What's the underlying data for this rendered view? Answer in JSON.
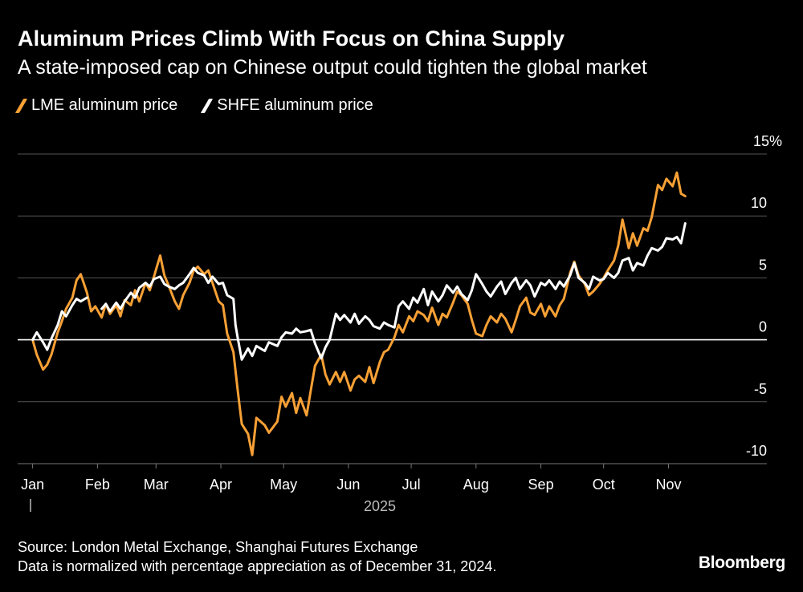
{
  "title": "Aluminum Prices Climb With Focus on China Supply",
  "subtitle": "A state-imposed cap on Chinese output could tighten the global market",
  "legend": [
    {
      "label": "LME aluminum price",
      "color": "#f7a035"
    },
    {
      "label": "SHFE aluminum price",
      "color": "#ffffff"
    }
  ],
  "footer": {
    "source": "Source: London Metal Exchange, Shanghai Futures Exchange",
    "note": "Data is normalized with percentage appreciation as of December 31, 2024."
  },
  "brand": "Bloomberg",
  "chart_data": {
    "type": "line",
    "title": "Aluminum Prices Climb With Focus on China Supply",
    "subtitle": "A state-imposed cap on Chinese output could tighten the global market",
    "xlabel": "2025",
    "ylabel": "",
    "x_ticks": [
      "Jan",
      "Feb",
      "Mar",
      "Apr",
      "May",
      "Jun",
      "Jul",
      "Aug",
      "Sep",
      "Oct",
      "Nov"
    ],
    "year_label": "2025",
    "y_ticks": [
      -10,
      -5,
      0,
      5,
      10
    ],
    "y_tick_labels": [
      "-10",
      "-5",
      "0",
      "5",
      "10"
    ],
    "y_top_label": "15%",
    "ylim": [
      -10,
      15
    ],
    "xlim": [
      "2024-12-31",
      "2025-11-30"
    ],
    "grid": true,
    "legend_position": "top-left",
    "series": [
      {
        "name": "LME aluminum price",
        "color": "#f7a035",
        "points": [
          [
            "2025-01-01",
            0.0
          ],
          [
            "2025-01-03",
            -1.2
          ],
          [
            "2025-01-06",
            -2.4
          ],
          [
            "2025-01-08",
            -2.0
          ],
          [
            "2025-01-10",
            -1.2
          ],
          [
            "2025-01-13",
            0.6
          ],
          [
            "2025-01-15",
            1.5
          ],
          [
            "2025-01-17",
            2.5
          ],
          [
            "2025-01-20",
            3.4
          ],
          [
            "2025-01-22",
            4.8
          ],
          [
            "2025-01-24",
            5.3
          ],
          [
            "2025-01-27",
            3.8
          ],
          [
            "2025-01-29",
            2.3
          ],
          [
            "2025-01-31",
            2.7
          ],
          [
            "2025-02-03",
            1.8
          ],
          [
            "2025-02-05",
            2.9
          ],
          [
            "2025-02-07",
            2.1
          ],
          [
            "2025-02-10",
            2.8
          ],
          [
            "2025-02-12",
            1.9
          ],
          [
            "2025-02-14",
            3.2
          ],
          [
            "2025-02-17",
            2.8
          ],
          [
            "2025-02-19",
            4.0
          ],
          [
            "2025-02-21",
            3.1
          ],
          [
            "2025-02-24",
            4.6
          ],
          [
            "2025-02-26",
            4.0
          ],
          [
            "2025-02-28",
            5.1
          ],
          [
            "2025-03-03",
            6.8
          ],
          [
            "2025-03-05",
            5.2
          ],
          [
            "2025-03-07",
            4.4
          ],
          [
            "2025-03-10",
            3.1
          ],
          [
            "2025-03-12",
            2.5
          ],
          [
            "2025-03-14",
            3.6
          ],
          [
            "2025-03-17",
            4.6
          ],
          [
            "2025-03-19",
            5.6
          ],
          [
            "2025-03-21",
            5.9
          ],
          [
            "2025-03-24",
            5.3
          ],
          [
            "2025-03-26",
            5.6
          ],
          [
            "2025-03-28",
            4.6
          ],
          [
            "2025-03-31",
            3.1
          ],
          [
            "2025-04-02",
            2.8
          ],
          [
            "2025-04-04",
            0.5
          ],
          [
            "2025-04-07",
            -1.0
          ],
          [
            "2025-04-09",
            -4.0
          ],
          [
            "2025-04-11",
            -6.8
          ],
          [
            "2025-04-14",
            -7.6
          ],
          [
            "2025-04-16",
            -9.3
          ],
          [
            "2025-04-18",
            -6.3
          ],
          [
            "2025-04-22",
            -6.9
          ],
          [
            "2025-04-24",
            -7.5
          ],
          [
            "2025-04-28",
            -6.6
          ],
          [
            "2025-04-30",
            -4.6
          ],
          [
            "2025-05-02",
            -5.4
          ],
          [
            "2025-05-05",
            -4.3
          ],
          [
            "2025-05-07",
            -5.9
          ],
          [
            "2025-05-09",
            -4.7
          ],
          [
            "2025-05-12",
            -6.1
          ],
          [
            "2025-05-14",
            -4.1
          ],
          [
            "2025-05-16",
            -2.1
          ],
          [
            "2025-05-19",
            -1.2
          ],
          [
            "2025-05-21",
            -2.8
          ],
          [
            "2025-05-23",
            -3.6
          ],
          [
            "2025-05-26",
            -2.6
          ],
          [
            "2025-05-28",
            -3.4
          ],
          [
            "2025-05-30",
            -2.6
          ],
          [
            "2025-06-02",
            -4.1
          ],
          [
            "2025-06-04",
            -3.2
          ],
          [
            "2025-06-06",
            -2.9
          ],
          [
            "2025-06-09",
            -3.4
          ],
          [
            "2025-06-11",
            -2.2
          ],
          [
            "2025-06-13",
            -3.5
          ],
          [
            "2025-06-16",
            -1.8
          ],
          [
            "2025-06-18",
            -1.0
          ],
          [
            "2025-06-20",
            -0.8
          ],
          [
            "2025-06-23",
            0.2
          ],
          [
            "2025-06-25",
            1.2
          ],
          [
            "2025-06-27",
            0.6
          ],
          [
            "2025-06-30",
            1.9
          ],
          [
            "2025-07-02",
            1.5
          ],
          [
            "2025-07-04",
            2.3
          ],
          [
            "2025-07-07",
            2.0
          ],
          [
            "2025-07-09",
            1.5
          ],
          [
            "2025-07-11",
            2.6
          ],
          [
            "2025-07-14",
            1.2
          ],
          [
            "2025-07-16",
            2.1
          ],
          [
            "2025-07-18",
            1.8
          ],
          [
            "2025-07-21",
            3.0
          ],
          [
            "2025-07-23",
            3.9
          ],
          [
            "2025-07-25",
            3.6
          ],
          [
            "2025-07-28",
            2.9
          ],
          [
            "2025-07-30",
            1.6
          ],
          [
            "2025-08-01",
            0.5
          ],
          [
            "2025-08-04",
            0.3
          ],
          [
            "2025-08-06",
            1.2
          ],
          [
            "2025-08-08",
            1.9
          ],
          [
            "2025-08-11",
            1.4
          ],
          [
            "2025-08-13",
            2.1
          ],
          [
            "2025-08-15",
            1.7
          ],
          [
            "2025-08-18",
            0.6
          ],
          [
            "2025-08-20",
            1.6
          ],
          [
            "2025-08-22",
            2.7
          ],
          [
            "2025-08-25",
            3.4
          ],
          [
            "2025-08-27",
            2.2
          ],
          [
            "2025-08-29",
            2.0
          ],
          [
            "2025-09-01",
            2.9
          ],
          [
            "2025-09-03",
            1.9
          ],
          [
            "2025-09-05",
            2.7
          ],
          [
            "2025-09-08",
            1.9
          ],
          [
            "2025-09-10",
            2.8
          ],
          [
            "2025-09-12",
            3.3
          ],
          [
            "2025-09-15",
            5.4
          ],
          [
            "2025-09-17",
            6.3
          ],
          [
            "2025-09-19",
            5.2
          ],
          [
            "2025-09-22",
            4.5
          ],
          [
            "2025-09-24",
            3.6
          ],
          [
            "2025-09-26",
            3.9
          ],
          [
            "2025-09-29",
            4.5
          ],
          [
            "2025-10-01",
            5.0
          ],
          [
            "2025-10-03",
            5.6
          ],
          [
            "2025-10-06",
            6.4
          ],
          [
            "2025-10-08",
            7.6
          ],
          [
            "2025-10-10",
            9.7
          ],
          [
            "2025-10-13",
            7.4
          ],
          [
            "2025-10-15",
            8.6
          ],
          [
            "2025-10-17",
            7.6
          ],
          [
            "2025-10-20",
            9.0
          ],
          [
            "2025-10-22",
            8.8
          ],
          [
            "2025-10-24",
            9.9
          ],
          [
            "2025-10-27",
            12.5
          ],
          [
            "2025-10-29",
            12.1
          ],
          [
            "2025-10-31",
            13.0
          ],
          [
            "2025-11-03",
            12.4
          ],
          [
            "2025-11-05",
            13.5
          ],
          [
            "2025-11-07",
            11.8
          ],
          [
            "2025-11-09",
            11.6
          ]
        ]
      },
      {
        "name": "SHFE aluminum price",
        "color": "#ffffff",
        "points": [
          [
            "2025-01-01",
            0.0
          ],
          [
            "2025-01-03",
            0.6
          ],
          [
            "2025-01-06",
            -0.2
          ],
          [
            "2025-01-08",
            -0.8
          ],
          [
            "2025-01-10",
            0.1
          ],
          [
            "2025-01-13",
            1.2
          ],
          [
            "2025-01-15",
            2.3
          ],
          [
            "2025-01-17",
            1.9
          ],
          [
            "2025-01-20",
            2.8
          ],
          [
            "2025-01-22",
            3.3
          ],
          [
            "2025-01-24",
            3.1
          ],
          [
            "2025-01-27",
            3.4
          ],
          [
            "2025-02-03",
            2.5
          ],
          [
            "2025-02-05",
            2.9
          ],
          [
            "2025-02-07",
            2.3
          ],
          [
            "2025-02-10",
            3.0
          ],
          [
            "2025-02-12",
            2.5
          ],
          [
            "2025-02-14",
            3.1
          ],
          [
            "2025-02-17",
            3.8
          ],
          [
            "2025-02-19",
            3.4
          ],
          [
            "2025-02-21",
            4.2
          ],
          [
            "2025-02-24",
            4.6
          ],
          [
            "2025-02-26",
            4.3
          ],
          [
            "2025-02-28",
            4.9
          ],
          [
            "2025-03-03",
            5.1
          ],
          [
            "2025-03-05",
            4.5
          ],
          [
            "2025-03-07",
            4.3
          ],
          [
            "2025-03-10",
            4.1
          ],
          [
            "2025-03-12",
            4.4
          ],
          [
            "2025-03-14",
            4.6
          ],
          [
            "2025-03-17",
            5.3
          ],
          [
            "2025-03-19",
            5.8
          ],
          [
            "2025-03-21",
            5.4
          ],
          [
            "2025-03-24",
            5.2
          ],
          [
            "2025-03-26",
            4.6
          ],
          [
            "2025-03-28",
            5.1
          ],
          [
            "2025-03-31",
            4.5
          ],
          [
            "2025-04-02",
            4.6
          ],
          [
            "2025-04-04",
            3.6
          ],
          [
            "2025-04-07",
            3.3
          ],
          [
            "2025-04-08",
            1.2
          ],
          [
            "2025-04-09",
            0.2
          ],
          [
            "2025-04-11",
            -1.6
          ],
          [
            "2025-04-14",
            -0.7
          ],
          [
            "2025-04-16",
            -1.3
          ],
          [
            "2025-04-18",
            -0.5
          ],
          [
            "2025-04-22",
            -0.9
          ],
          [
            "2025-04-24",
            -0.2
          ],
          [
            "2025-04-28",
            -0.5
          ],
          [
            "2025-04-30",
            0.2
          ],
          [
            "2025-05-02",
            0.6
          ],
          [
            "2025-05-05",
            0.5
          ],
          [
            "2025-05-07",
            0.9
          ],
          [
            "2025-05-09",
            0.6
          ],
          [
            "2025-05-12",
            0.7
          ],
          [
            "2025-05-14",
            0.8
          ],
          [
            "2025-05-16",
            -0.3
          ],
          [
            "2025-05-19",
            -1.5
          ],
          [
            "2025-05-21",
            -0.6
          ],
          [
            "2025-05-23",
            0.0
          ],
          [
            "2025-05-26",
            2.1
          ],
          [
            "2025-05-28",
            1.6
          ],
          [
            "2025-05-30",
            2.0
          ],
          [
            "2025-06-02",
            1.4
          ],
          [
            "2025-06-04",
            2.1
          ],
          [
            "2025-06-06",
            1.3
          ],
          [
            "2025-06-09",
            1.9
          ],
          [
            "2025-06-11",
            1.6
          ],
          [
            "2025-06-13",
            1.1
          ],
          [
            "2025-06-16",
            0.9
          ],
          [
            "2025-06-18",
            1.4
          ],
          [
            "2025-06-20",
            1.2
          ],
          [
            "2025-06-23",
            1.0
          ],
          [
            "2025-06-25",
            2.7
          ],
          [
            "2025-06-27",
            3.1
          ],
          [
            "2025-06-30",
            2.5
          ],
          [
            "2025-07-02",
            3.4
          ],
          [
            "2025-07-04",
            3.0
          ],
          [
            "2025-07-07",
            4.1
          ],
          [
            "2025-07-09",
            2.8
          ],
          [
            "2025-07-11",
            3.9
          ],
          [
            "2025-07-14",
            3.1
          ],
          [
            "2025-07-16",
            3.6
          ],
          [
            "2025-07-18",
            4.4
          ],
          [
            "2025-07-21",
            3.8
          ],
          [
            "2025-07-23",
            4.3
          ],
          [
            "2025-07-25",
            3.7
          ],
          [
            "2025-07-28",
            3.2
          ],
          [
            "2025-07-30",
            4.0
          ],
          [
            "2025-08-01",
            5.3
          ],
          [
            "2025-08-04",
            4.5
          ],
          [
            "2025-08-06",
            3.9
          ],
          [
            "2025-08-08",
            3.5
          ],
          [
            "2025-08-11",
            4.3
          ],
          [
            "2025-08-13",
            4.7
          ],
          [
            "2025-08-15",
            3.7
          ],
          [
            "2025-08-18",
            4.6
          ],
          [
            "2025-08-20",
            5.0
          ],
          [
            "2025-08-22",
            4.1
          ],
          [
            "2025-08-25",
            4.8
          ],
          [
            "2025-08-27",
            4.4
          ],
          [
            "2025-08-29",
            3.5
          ],
          [
            "2025-09-01",
            4.6
          ],
          [
            "2025-09-03",
            4.4
          ],
          [
            "2025-09-05",
            4.8
          ],
          [
            "2025-09-08",
            4.1
          ],
          [
            "2025-09-10",
            4.7
          ],
          [
            "2025-09-12",
            4.3
          ],
          [
            "2025-09-15",
            5.2
          ],
          [
            "2025-09-17",
            6.2
          ],
          [
            "2025-09-19",
            5.0
          ],
          [
            "2025-09-22",
            4.6
          ],
          [
            "2025-09-24",
            4.1
          ],
          [
            "2025-09-26",
            5.1
          ],
          [
            "2025-09-29",
            4.8
          ],
          [
            "2025-10-01",
            4.9
          ],
          [
            "2025-10-03",
            5.4
          ],
          [
            "2025-10-06",
            5.0
          ],
          [
            "2025-10-08",
            5.4
          ],
          [
            "2025-10-10",
            6.4
          ],
          [
            "2025-10-13",
            6.6
          ],
          [
            "2025-10-15",
            5.6
          ],
          [
            "2025-10-17",
            6.2
          ],
          [
            "2025-10-20",
            6.0
          ],
          [
            "2025-10-22",
            6.8
          ],
          [
            "2025-10-24",
            7.4
          ],
          [
            "2025-10-27",
            7.2
          ],
          [
            "2025-10-29",
            7.5
          ],
          [
            "2025-10-31",
            8.2
          ],
          [
            "2025-11-03",
            8.1
          ],
          [
            "2025-11-05",
            8.3
          ],
          [
            "2025-11-07",
            7.8
          ],
          [
            "2025-11-09",
            9.4
          ]
        ]
      }
    ]
  }
}
